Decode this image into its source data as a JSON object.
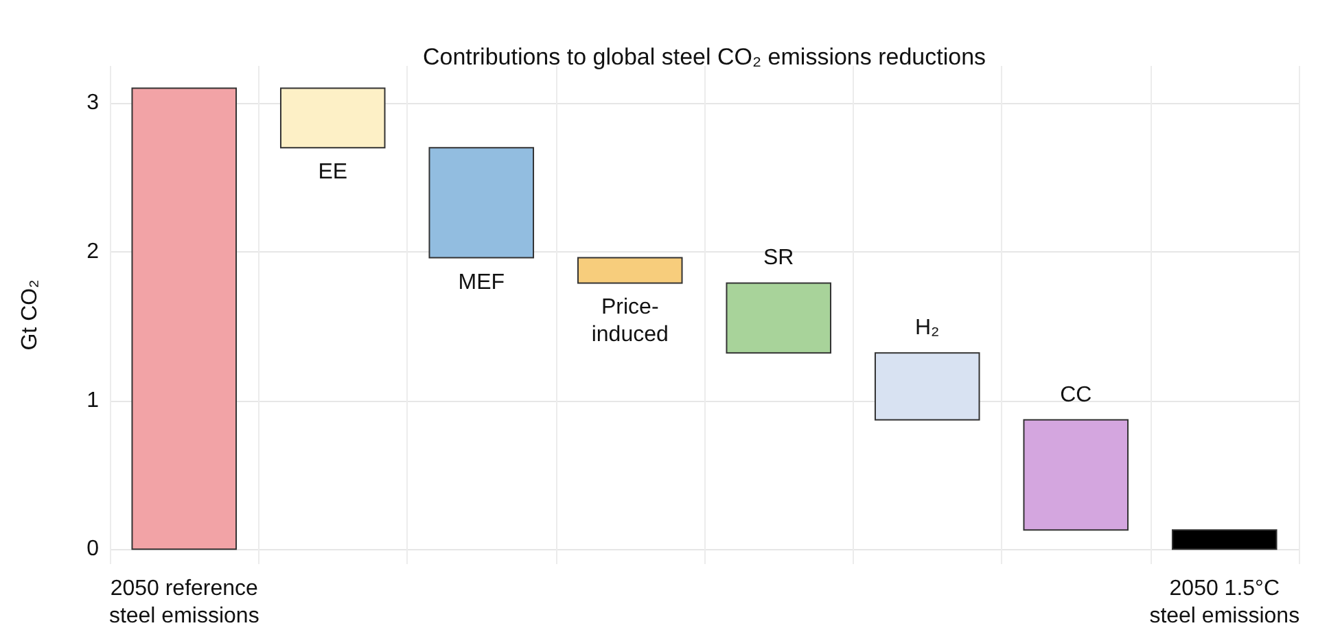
{
  "chart_data": {
    "type": "bar",
    "title": "Contributions to global steel CO₂ emissions reductions",
    "ylabel": "Gt CO₂",
    "categories": [
      "2050 reference\nsteel emissions",
      "EE",
      "MEF",
      "Price-\ninduced",
      "SR",
      "H₂",
      "CC",
      "2050 1.5°C\nsteel emissions"
    ],
    "base": [
      0,
      2.7,
      1.96,
      1.79,
      1.32,
      0.87,
      0.13,
      0
    ],
    "values": [
      3.1,
      0.4,
      0.74,
      0.17,
      0.47,
      0.45,
      0.74,
      0.13
    ],
    "colors": [
      "#f2a3a6",
      "#fdf0c6",
      "#92bde0",
      "#f7cd7c",
      "#a8d39a",
      "#d8e2f2",
      "#d4a6df",
      "#000000"
    ],
    "ylim": [
      -0.1,
      3.25
    ],
    "yticks": [
      0,
      1,
      2,
      3
    ],
    "grid": true
  }
}
